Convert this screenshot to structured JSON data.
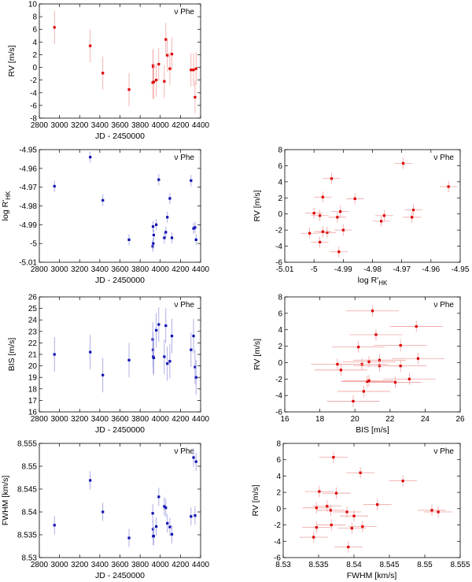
{
  "chart_data": {
    "type": "scatter",
    "star_label": "ν Phe",
    "colors": {
      "rv": "#dd0000",
      "rv_err": "#f0a0a0",
      "act": "#1010b0",
      "act_err": "#9a9ae0",
      "frame": "#000000"
    },
    "jd": [
      2950,
      3305,
      3430,
      3690,
      3925,
      3928,
      3930,
      3935,
      3960,
      3985,
      4040,
      4055,
      4070,
      4095,
      4115,
      4305,
      4330,
      4345,
      4355
    ],
    "rv": [
      6.3,
      3.4,
      -0.9,
      -3.5,
      -2.4,
      0.3,
      0.1,
      -2.3,
      -2.0,
      0.5,
      -2.2,
      4.4,
      1.9,
      -0.2,
      2.1,
      -0.4,
      -0.4,
      -4.7,
      -0.2
    ],
    "log_rhk": [
      -4.9695,
      -4.954,
      -4.977,
      -4.998,
      -5.0015,
      -4.991,
      -5.0,
      -4.9955,
      -4.99,
      -4.966,
      -4.997,
      -4.994,
      -4.986,
      -4.976,
      -4.997,
      -4.9665,
      -4.992,
      -4.9915,
      -4.998
    ],
    "bis": [
      21.0,
      21.2,
      19.2,
      20.5,
      22.3,
      21.4,
      20.8,
      20.7,
      23.1,
      23.6,
      20.8,
      23.5,
      20.2,
      20.4,
      22.6,
      21.4,
      22.6,
      19.9,
      19.0
    ],
    "fwhm": [
      8.5371,
      8.5469,
      8.54,
      8.5343,
      8.5397,
      8.5362,
      8.5347,
      8.5347,
      8.5368,
      8.5433,
      8.5412,
      8.5409,
      8.5375,
      8.5367,
      8.5351,
      8.539,
      8.5519,
      8.5392,
      8.551
    ],
    "errors": {
      "rv_time": 2.6,
      "rv_corr": 0.7,
      "log_rhk": 0.003,
      "bis": 1.5,
      "fwhm": 0.002
    },
    "panels": [
      {
        "id": "rv-vs-time",
        "x": "jd",
        "y": "rv",
        "xerr": null,
        "yerr": "rv_time",
        "kind": "rv",
        "xlabel": "JD - 2450000",
        "ylabel": "RV [m/s]",
        "ylabel_sub": "",
        "xlim": [
          2800,
          4400
        ],
        "ylim": [
          -8,
          10
        ],
        "xticks": [
          "2800",
          "3000",
          "3200",
          "3400",
          "3600",
          "3800",
          "4000",
          "4200",
          "4400"
        ],
        "yticks": [
          "-8",
          "-6",
          "-4",
          "-2",
          "0",
          "2",
          "4",
          "6",
          "8",
          "10"
        ]
      },
      {
        "id": "logrhk-vs-time",
        "x": "jd",
        "y": "log_rhk",
        "xerr": null,
        "yerr": "log_rhk",
        "kind": "act",
        "xlabel": "JD - 2450000",
        "ylabel": "log R'",
        "ylabel_sub": "HK",
        "xlim": [
          2800,
          4400
        ],
        "ylim": [
          -5.01,
          -4.95
        ],
        "xticks": [
          "2800",
          "3000",
          "3200",
          "3400",
          "3600",
          "3800",
          "4000",
          "4200",
          "4400"
        ],
        "yticks": [
          "-5.01",
          "-5",
          "-4.99",
          "-4.98",
          "-4.97",
          "-4.96",
          "-4.95"
        ]
      },
      {
        "id": "rv-vs-logrhk",
        "x": "log_rhk",
        "y": "rv",
        "xerr": "log_rhk",
        "yerr": "rv_corr",
        "kind": "rv",
        "xlabel": "log R'",
        "xlabel_sub": "HK",
        "ylabel": "RV [m/s]",
        "ylabel_sub": "",
        "xlim": [
          -5.01,
          -4.95
        ],
        "ylim": [
          -6,
          8
        ],
        "xticks": [
          "-5.01",
          "-5",
          "-4.99",
          "-4.98",
          "-4.97",
          "-4.96",
          "-4.95"
        ],
        "yticks": [
          "-6",
          "-4",
          "-2",
          "0",
          "2",
          "4",
          "6",
          "8"
        ]
      },
      {
        "id": "bis-vs-time",
        "x": "jd",
        "y": "bis",
        "xerr": null,
        "yerr": "bis",
        "kind": "act",
        "xlabel": "JD - 2450000",
        "ylabel": "BIS [m/s]",
        "ylabel_sub": "",
        "xlim": [
          2800,
          4400
        ],
        "ylim": [
          16,
          26
        ],
        "xticks": [
          "2800",
          "3000",
          "3200",
          "3400",
          "3600",
          "3800",
          "4000",
          "4200",
          "4400"
        ],
        "yticks": [
          "16",
          "17",
          "18",
          "19",
          "20",
          "21",
          "22",
          "23",
          "24",
          "25",
          "26"
        ]
      },
      {
        "id": "rv-vs-bis",
        "x": "bis",
        "y": "rv",
        "xerr": "bis",
        "yerr": "rv_corr",
        "kind": "rv",
        "xlabel": "BIS [m/s]",
        "ylabel": "RV [m/s]",
        "ylabel_sub": "",
        "xlim": [
          16,
          26
        ],
        "ylim": [
          -6,
          8
        ],
        "xticks": [
          "16",
          "18",
          "20",
          "22",
          "24",
          "26"
        ],
        "yticks": [
          "-6",
          "-4",
          "-2",
          "0",
          "2",
          "4",
          "6",
          "8"
        ]
      },
      {
        "id": "fwhm-vs-time",
        "x": "jd",
        "y": "fwhm",
        "xerr": null,
        "yerr": "fwhm",
        "kind": "act",
        "xlabel": "JD - 2450000",
        "ylabel": "FWHM [km/s]",
        "ylabel_sub": "",
        "xlim": [
          2800,
          4400
        ],
        "ylim": [
          8.53,
          8.555
        ],
        "xticks": [
          "2800",
          "3000",
          "3200",
          "3400",
          "3600",
          "3800",
          "4000",
          "4200",
          "4400"
        ],
        "yticks": [
          "8.53",
          "8.535",
          "8.54",
          "8.545",
          "8.55",
          "8.555"
        ]
      },
      {
        "id": "rv-vs-fwhm",
        "x": "fwhm",
        "y": "rv",
        "xerr": "fwhm",
        "yerr": "rv_corr",
        "kind": "rv",
        "xlabel": "FWHM [km/s]",
        "ylabel": "RV [m/s]",
        "ylabel_sub": "",
        "xlim": [
          8.53,
          8.555
        ],
        "ylim": [
          -6,
          8
        ],
        "xticks": [
          "8.53",
          "8.535",
          "8.54",
          "8.545",
          "8.55",
          "8.555"
        ],
        "yticks": [
          "-6",
          "-4",
          "-2",
          "0",
          "2",
          "4",
          "6",
          "8"
        ]
      }
    ]
  }
}
